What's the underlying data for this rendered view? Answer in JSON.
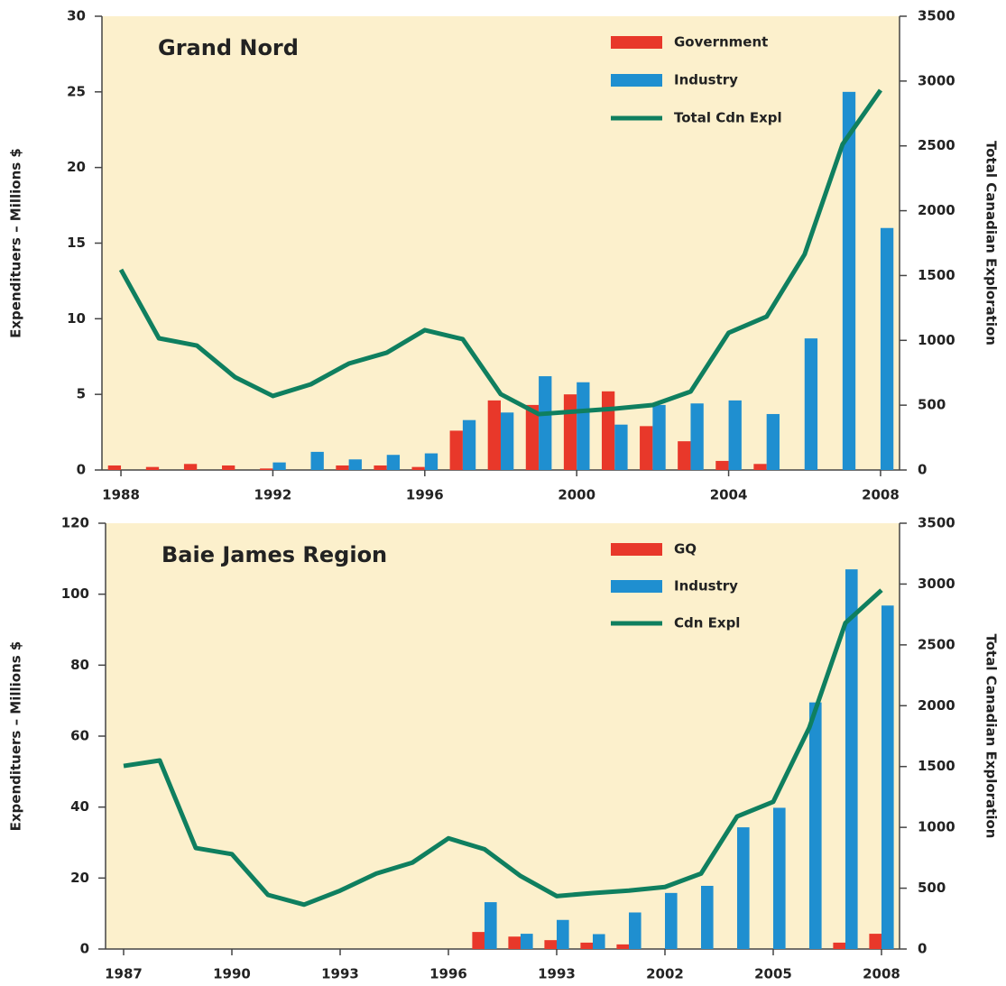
{
  "chart_data": [
    {
      "type": "bar",
      "title": "Grand Nord",
      "ylabel": "Expendituers – Millions $",
      "y2label": "Total Canadian Exploration",
      "categories": [
        "1988",
        null,
        null,
        null,
        "1992",
        null,
        null,
        null,
        "1996",
        null,
        null,
        null,
        "2000",
        null,
        null,
        null,
        "2004",
        null,
        null,
        null,
        "2008"
      ],
      "series": [
        {
          "name": "Government",
          "color": "#e8382a",
          "values": [
            0.3,
            0.2,
            0.4,
            0.3,
            0.1,
            0,
            0.3,
            0.3,
            0.2,
            2.6,
            4.6,
            4.3,
            5.0,
            5.2,
            2.9,
            1.9,
            0.6,
            0.4,
            0,
            0,
            0
          ]
        },
        {
          "name": "Industry",
          "color": "#1f8fd0",
          "values": [
            0,
            0,
            0,
            0,
            0.5,
            1.2,
            0.7,
            1.0,
            1.1,
            3.3,
            3.8,
            6.2,
            5.8,
            3.0,
            4.3,
            4.4,
            4.6,
            3.7,
            8.7,
            25,
            16.0
          ]
        },
        {
          "name": "Total Cdn Expl",
          "color": "#0f7f5f",
          "type": "line",
          "axis": "y2",
          "values": [
            1545,
            1016,
            960,
            717,
            571,
            661,
            821,
            905,
            1079,
            1009,
            585,
            431,
            452,
            473,
            501,
            605,
            1058,
            1183,
            1663,
            2512,
            2930
          ]
        }
      ],
      "ylim": [
        0,
        30
      ],
      "yticks": [
        0,
        5,
        10,
        15,
        20,
        25,
        30
      ],
      "y2lim": [
        0,
        3500
      ],
      "y2ticks": [
        0,
        500,
        1000,
        1500,
        2000,
        2500,
        3000,
        3500
      ],
      "legend": "upper right"
    },
    {
      "type": "bar",
      "title": "Baie James Region",
      "ylabel": "Expendituers – Millions $",
      "y2label": "Total Canadian Exploration",
      "categories": [
        "1987",
        null,
        null,
        "1990",
        null,
        null,
        "1993",
        null,
        null,
        "1996",
        null,
        null,
        "1993",
        null,
        null,
        "2002",
        null,
        null,
        "2005",
        null,
        null,
        "2008"
      ],
      "series": [
        {
          "name": "GQ",
          "color": "#e8382a",
          "values": [
            0,
            0,
            0,
            0,
            0,
            0,
            0,
            0,
            0,
            0,
            4.8,
            3.5,
            2.5,
            1.8,
            1.3,
            0,
            0,
            0,
            0,
            0,
            1.8,
            4.3
          ]
        },
        {
          "name": "Industry",
          "color": "#1f8fd0",
          "values": [
            0,
            0,
            0,
            0,
            0,
            0,
            0,
            0,
            0,
            0,
            13.2,
            4.3,
            8.2,
            4.2,
            10.3,
            15.8,
            17.8,
            34.3,
            39.8,
            69.5,
            107,
            96.8
          ]
        },
        {
          "name": "Cdn Expl",
          "color": "#0f7f5f",
          "type": "line",
          "axis": "y2",
          "values": [
            1505,
            1550,
            830,
            780,
            445,
            365,
            480,
            620,
            710,
            910,
            820,
            600,
            435,
            460,
            480,
            510,
            620,
            1090,
            1210,
            1820,
            2680,
            2950
          ]
        }
      ],
      "ylim": [
        0,
        120
      ],
      "yticks": [
        0,
        20,
        40,
        60,
        80,
        100,
        120
      ],
      "y2lim": [
        0,
        3500
      ],
      "y2ticks": [
        0,
        500,
        1000,
        1500,
        2000,
        2500,
        3000,
        3500
      ],
      "legend": "upper right"
    }
  ]
}
